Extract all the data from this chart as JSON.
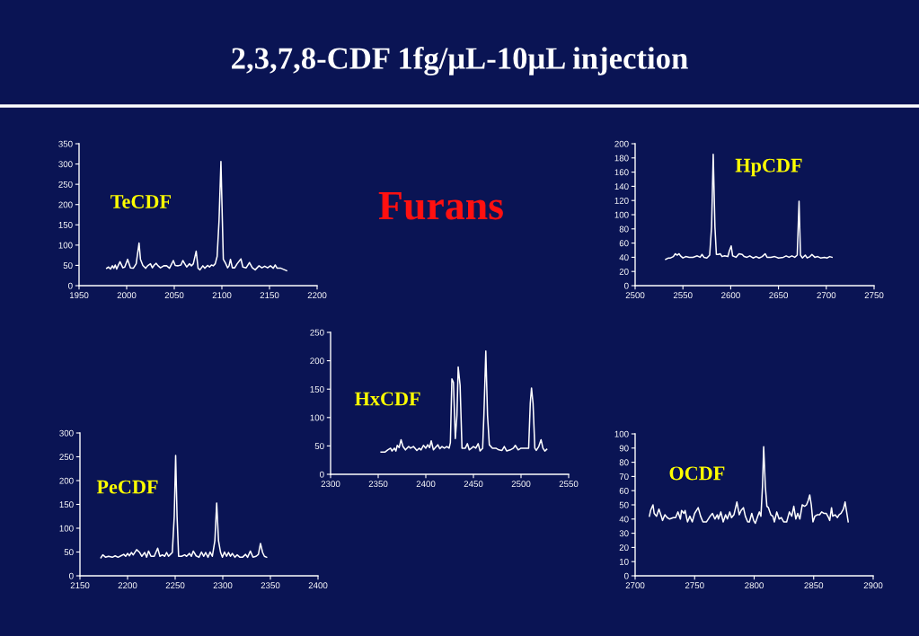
{
  "chart_data": [
    {
      "type": "other",
      "title": "2,3,7,8-CDF 1fg/μL-10μL injection",
      "annotations": [
        "Furans"
      ]
    },
    {
      "type": "line",
      "title": "TeCDF",
      "xlim": [
        1950,
        2200
      ],
      "xticks": [
        1950,
        2000,
        2050,
        2100,
        2150,
        2200
      ],
      "ylim": [
        0,
        350
      ],
      "yticks": [
        0,
        50,
        100,
        150,
        200,
        250,
        300,
        350
      ],
      "x": [
        1979,
        1981,
        1983,
        1985,
        1986.5,
        1988,
        1989.5,
        1991,
        1993,
        1996,
        1998,
        2001,
        2004,
        2007,
        2010,
        2013,
        2014.5,
        2017,
        2020,
        2022,
        2025,
        2027,
        2029,
        2031,
        2033,
        2035.5,
        2039,
        2042,
        2045,
        2049,
        2051,
        2054,
        2057,
        2059,
        2061,
        2063,
        2066,
        2068,
        2070,
        2073,
        2075,
        2077,
        2080,
        2082,
        2085,
        2087,
        2089,
        2091,
        2093,
        2095,
        2097,
        2099,
        2100.5,
        2101.5,
        2103.5,
        2106,
        2107.5,
        2109,
        2111,
        2113.5,
        2116,
        2120,
        2122,
        2125.5,
        2129,
        2132,
        2135,
        2139,
        2142,
        2145,
        2148,
        2151,
        2154,
        2156,
        2158,
        2162,
        2168
      ],
      "series": [
        {
          "color": "#ffffff",
          "values": [
            43,
            46,
            41,
            49,
            43,
            51,
            41,
            49,
            59,
            44,
            46,
            65,
            44,
            43,
            54,
            105,
            65,
            50,
            43,
            49,
            54,
            44,
            51,
            55,
            49,
            44,
            49,
            49,
            43,
            62,
            50,
            49,
            51,
            62,
            54,
            46,
            54,
            49,
            54,
            85,
            43,
            39,
            49,
            43,
            50,
            46,
            51,
            49,
            54,
            72,
            160,
            306,
            160,
            65,
            57,
            44,
            49,
            65,
            44,
            44,
            54,
            66,
            46,
            44,
            57,
            44,
            39,
            49,
            44,
            48,
            44,
            49,
            43,
            51,
            43,
            43,
            37
          ]
        }
      ]
    },
    {
      "type": "line",
      "title": "HpCDF",
      "xlim": [
        2500,
        2750
      ],
      "xticks": [
        2500,
        2550,
        2600,
        2650,
        2700,
        2750
      ],
      "ylim": [
        0,
        200
      ],
      "yticks": [
        0,
        20,
        40,
        60,
        80,
        100,
        120,
        140,
        160,
        180,
        200
      ],
      "x": [
        2532,
        2535,
        2537,
        2540,
        2542,
        2544,
        2546,
        2547.5,
        2550,
        2553,
        2556.5,
        2560.5,
        2565,
        2568,
        2570,
        2572,
        2575,
        2578,
        2580,
        2581.7,
        2583.5,
        2585,
        2587,
        2589,
        2591,
        2593.5,
        2597,
        2598.6,
        2600.5,
        2602,
        2605.5,
        2608.7,
        2612,
        2614,
        2617,
        2620,
        2623.4,
        2626.6,
        2629.7,
        2633,
        2636,
        2638,
        2642,
        2646,
        2650,
        2655,
        2658,
        2661,
        2664,
        2667,
        2669.6,
        2671.5,
        2673,
        2675,
        2678,
        2680,
        2683,
        2685,
        2688,
        2691,
        2694,
        2698,
        2701,
        2703.5,
        2706
      ],
      "series": [
        {
          "color": "#ffffff",
          "values": [
            37,
            39,
            39,
            41,
            45,
            43,
            45,
            42,
            39,
            41,
            40,
            40,
            42,
            40,
            44,
            40,
            39,
            43,
            83,
            185,
            83,
            44,
            44,
            45,
            41,
            42,
            41,
            49,
            56,
            42,
            40,
            45,
            44,
            41,
            40,
            42,
            39,
            41,
            39,
            41,
            45,
            40,
            40,
            41,
            39,
            40,
            42,
            40,
            42,
            40,
            43,
            119,
            43,
            39,
            43,
            39,
            41,
            44,
            40,
            41,
            39,
            40,
            39,
            41,
            40
          ]
        }
      ]
    },
    {
      "type": "line",
      "title": "HxCDF",
      "xlim": [
        2300,
        2550
      ],
      "xticks": [
        2300,
        2350,
        2400,
        2450,
        2500,
        2550
      ],
      "ylim": [
        0,
        250
      ],
      "yticks": [
        0,
        50,
        100,
        150,
        200,
        250
      ],
      "x": [
        2353,
        2357,
        2360,
        2363,
        2364.5,
        2367,
        2368.6,
        2370,
        2372,
        2374,
        2376,
        2378.6,
        2382,
        2384,
        2387,
        2390.6,
        2393,
        2395,
        2397.5,
        2400,
        2402,
        2404,
        2405.7,
        2408,
        2410,
        2412.6,
        2414.8,
        2417,
        2419.5,
        2422,
        2424.5,
        2425.8,
        2427.4,
        2429,
        2431,
        2432.7,
        2434,
        2436,
        2438,
        2441.5,
        2443.7,
        2445.6,
        2448,
        2450,
        2452.5,
        2455,
        2457,
        2459.7,
        2461,
        2463,
        2464.8,
        2466.7,
        2470,
        2473.6,
        2476.7,
        2480,
        2482.4,
        2485,
        2488.7,
        2492,
        2494,
        2497,
        2500,
        2503,
        2508,
        2509.7,
        2511,
        2512.6,
        2514.5,
        2516,
        2518.6,
        2521,
        2523,
        2525,
        2527
      ],
      "series": [
        {
          "color": "#ffffff",
          "values": [
            39,
            39,
            43,
            46,
            41,
            46,
            41,
            51,
            47,
            61,
            49,
            43,
            49,
            46,
            49,
            42,
            46,
            43,
            51,
            46,
            52,
            47,
            59,
            43,
            47,
            52,
            45,
            49,
            46,
            49,
            46,
            56,
            168,
            162,
            63,
            104,
            189,
            157,
            46,
            46,
            54,
            43,
            46,
            49,
            46,
            54,
            41,
            46,
            104,
            217,
            104,
            52,
            46,
            46,
            43,
            42,
            49,
            41,
            43,
            46,
            51,
            43,
            46,
            46,
            46,
            125,
            152,
            125,
            46,
            42,
            49,
            61,
            46,
            41,
            44
          ]
        }
      ]
    },
    {
      "type": "line",
      "title": "PeCDF",
      "xlim": [
        2150,
        2400
      ],
      "xticks": [
        2150,
        2200,
        2250,
        2300,
        2350,
        2400
      ],
      "ylim": [
        0,
        300
      ],
      "yticks": [
        0,
        50,
        100,
        150,
        200,
        250,
        300
      ],
      "x": [
        2172,
        2174,
        2177,
        2180,
        2184,
        2187,
        2190,
        2193,
        2196,
        2198,
        2200,
        2202,
        2204,
        2206,
        2209.5,
        2212.7,
        2215,
        2218,
        2220,
        2222,
        2224.6,
        2228,
        2231.6,
        2234,
        2236.6,
        2239,
        2241,
        2243,
        2245,
        2247,
        2249,
        2250.5,
        2252,
        2253.6,
        2256.8,
        2260,
        2262,
        2265,
        2267,
        2269,
        2272,
        2275,
        2277.6,
        2280,
        2282,
        2284.5,
        2286.7,
        2289,
        2291.7,
        2293.6,
        2295.5,
        2297.7,
        2299.6,
        2301.8,
        2304,
        2306,
        2308,
        2310,
        2312.8,
        2315,
        2318,
        2320.7,
        2323.9,
        2326,
        2329,
        2331.7,
        2335,
        2337.4,
        2339.6,
        2341.8,
        2343.7,
        2346
      ],
      "series": [
        {
          "color": "#ffffff",
          "values": [
            38,
            44,
            39,
            41,
            39,
            42,
            39,
            42,
            45,
            41,
            47,
            42,
            49,
            44,
            55,
            49,
            41,
            49,
            39,
            52,
            41,
            41,
            58,
            41,
            44,
            41,
            49,
            41,
            45,
            49,
            124,
            253,
            124,
            41,
            41,
            44,
            41,
            47,
            41,
            52,
            42,
            39,
            50,
            41,
            49,
            39,
            50,
            41,
            74,
            153,
            74,
            49,
            39,
            50,
            41,
            49,
            41,
            47,
            39,
            44,
            39,
            39,
            45,
            39,
            52,
            39,
            41,
            45,
            68,
            49,
            41,
            39
          ]
        }
      ]
    },
    {
      "type": "line",
      "title": "OCDF",
      "xlim": [
        2700,
        2900
      ],
      "xticks": [
        2700,
        2750,
        2800,
        2850,
        2900
      ],
      "ylim": [
        0,
        100
      ],
      "yticks": [
        0,
        10,
        20,
        30,
        40,
        50,
        60,
        70,
        80,
        90,
        100
      ],
      "x": [
        2712,
        2713,
        2715,
        2716,
        2718,
        2720,
        2722,
        2723,
        2725,
        2727,
        2729,
        2732,
        2734,
        2736,
        2738,
        2739,
        2741,
        2742,
        2744,
        2746,
        2748,
        2750,
        2753,
        2755,
        2757,
        2760,
        2763,
        2765,
        2767,
        2769,
        2770,
        2772,
        2774,
        2776,
        2777.5,
        2779.5,
        2781,
        2783,
        2785.5,
        2787.5,
        2789,
        2791,
        2792.6,
        2794.6,
        2796,
        2798,
        2799.6,
        2801,
        2803,
        2804.4,
        2805.7,
        2807,
        2808,
        2809.4,
        2810.7,
        2812,
        2814,
        2815.7,
        2817,
        2819,
        2821,
        2822.8,
        2824.8,
        2827.3,
        2829.6,
        2831.6,
        2833.3,
        2835,
        2836.6,
        2838.4,
        2840.4,
        2842.4,
        2844,
        2845.4,
        2846.7,
        2848,
        2849.4,
        2851,
        2853,
        2855,
        2856.7,
        2858.5,
        2860.5,
        2862.5,
        2863.5,
        2865,
        2866,
        2868,
        2870,
        2871.3,
        2873,
        2875,
        2876.4,
        2879
      ],
      "series": [
        {
          "color": "#ffffff",
          "values": [
            42,
            46,
            50,
            44,
            42,
            47,
            42,
            39,
            43,
            41,
            40,
            41,
            41,
            45,
            40,
            46,
            44,
            46,
            38,
            42,
            38,
            44,
            48,
            42,
            38,
            38,
            42,
            44,
            40,
            43,
            40,
            45,
            38,
            43,
            40,
            45,
            41,
            43,
            52,
            43,
            46,
            48,
            42,
            38,
            38,
            44,
            39,
            37,
            42,
            45,
            42,
            63,
            91,
            63,
            49,
            48,
            43,
            42,
            38,
            45,
            40,
            41,
            38,
            38,
            45,
            42,
            49,
            40,
            44,
            40,
            50,
            49,
            50,
            53,
            57,
            50,
            38,
            42,
            43,
            43,
            45,
            44,
            44,
            41,
            39,
            48,
            42,
            43,
            41,
            43,
            44,
            47,
            52,
            38
          ]
        }
      ]
    }
  ]
}
